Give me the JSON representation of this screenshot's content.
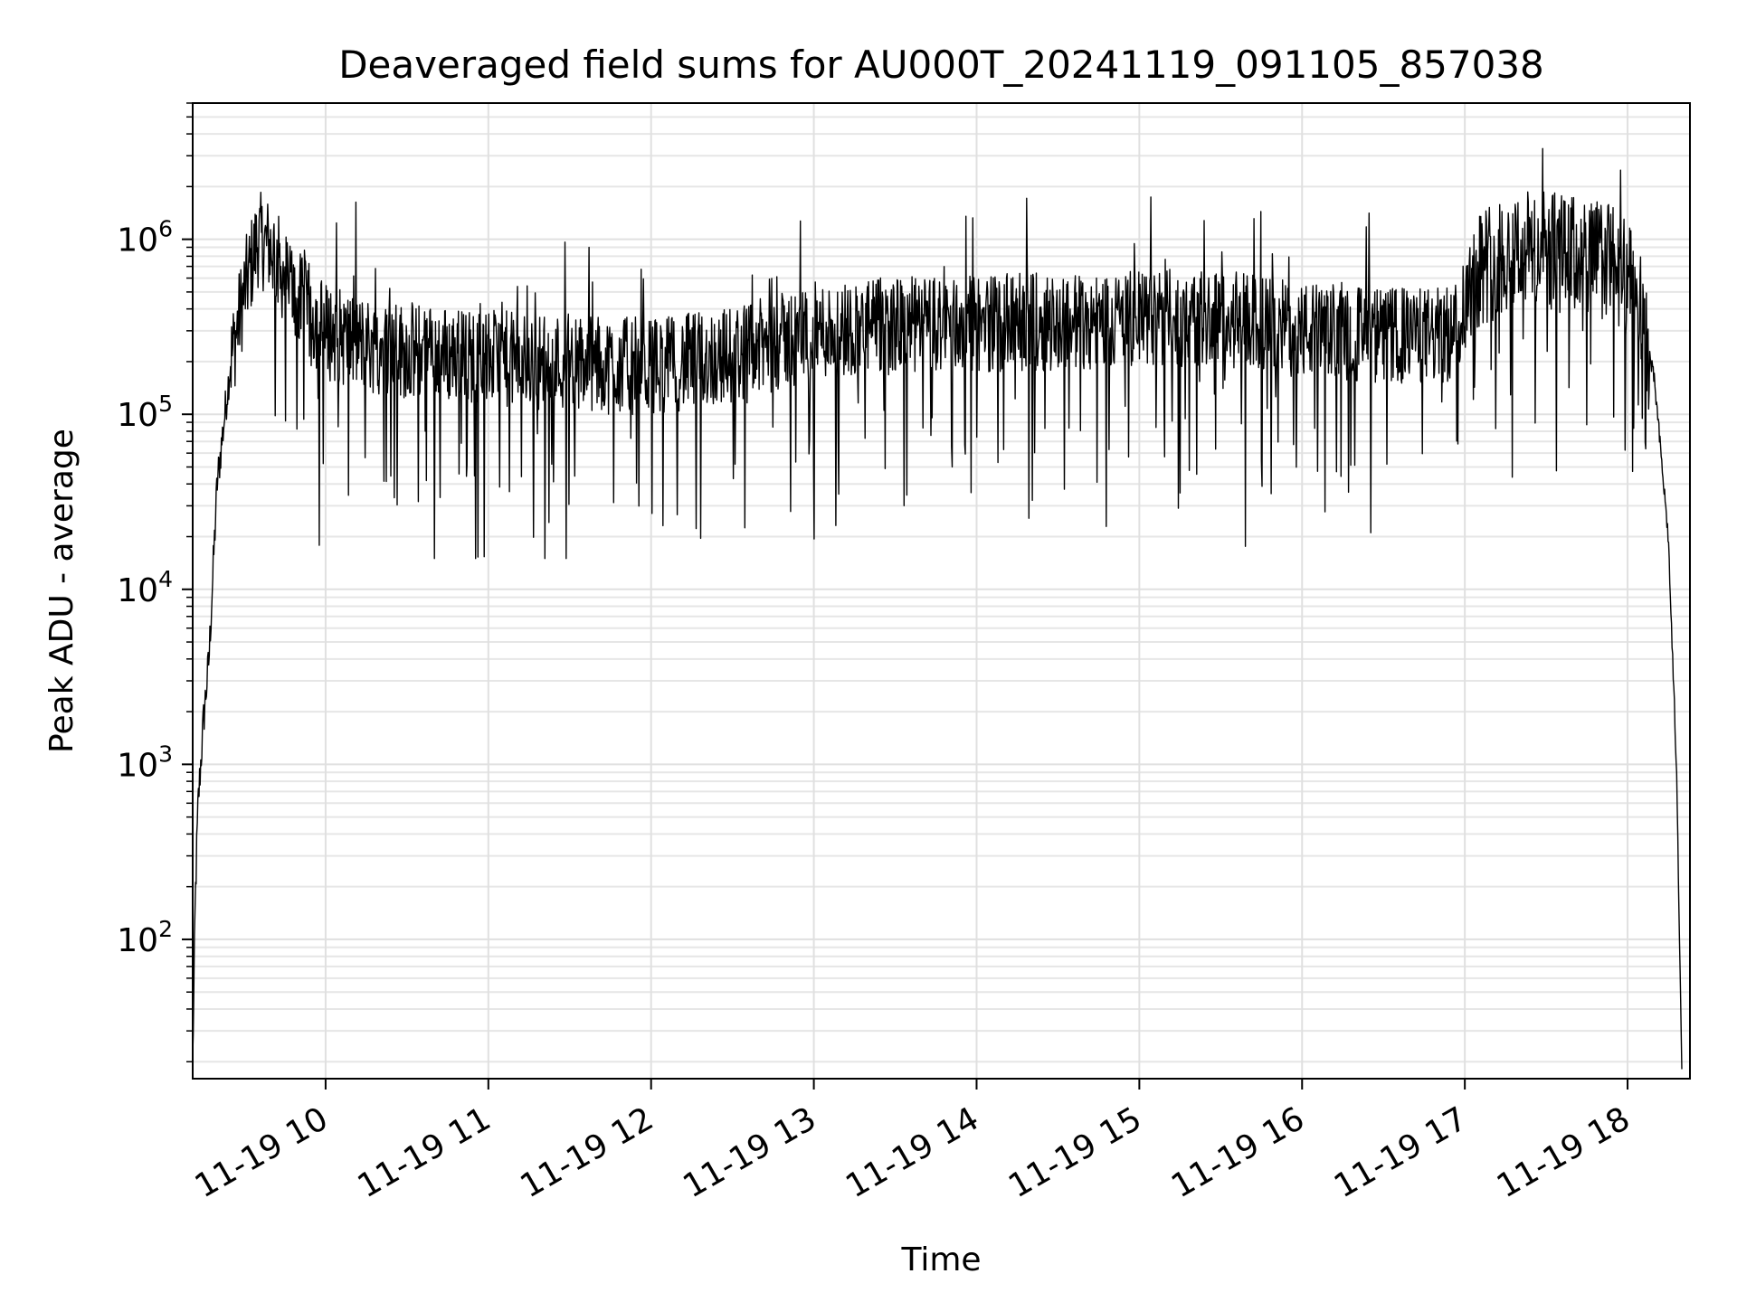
{
  "chart_data": {
    "type": "line",
    "title": "Deaveraged field sums for AU000T_20241119_091105_857038",
    "xlabel": "Time",
    "ylabel": "Peak ADU - average",
    "yscale": "log",
    "ylim": [
      16,
      6000000
    ],
    "xlim": [
      "11-19 09:11",
      "11-19 18:23"
    ],
    "x_tick_labels": [
      "11-19 10",
      "11-19 11",
      "11-19 12",
      "11-19 13",
      "11-19 14",
      "11-19 15",
      "11-19 16",
      "11-19 17",
      "11-19 18"
    ],
    "x_tick_values": [
      "11-19 10:00",
      "11-19 11:00",
      "11-19 12:00",
      "11-19 13:00",
      "11-19 14:00",
      "11-19 15:00",
      "11-19 16:00",
      "11-19 17:00",
      "11-19 18:00"
    ],
    "y_tick_labels": [
      {
        "base": "10",
        "exp": "2"
      },
      {
        "base": "10",
        "exp": "3"
      },
      {
        "base": "10",
        "exp": "4"
      },
      {
        "base": "10",
        "exp": "5"
      },
      {
        "base": "10",
        "exp": "6"
      }
    ],
    "y_tick_values": [
      100,
      1000,
      10000,
      100000,
      1000000
    ],
    "grid": true,
    "grid_which": "both",
    "series": [
      {
        "color": "#000000",
        "x": [
          "11-19 09:11",
          "11-19 09:12",
          "11-19 09:13",
          "11-19 09:15",
          "11-19 09:17",
          "11-19 09:20",
          "11-19 09:25",
          "11-19 09:30",
          "11-19 09:35",
          "11-19 09:40",
          "11-19 09:45",
          "11-19 09:50",
          "11-19 10:00",
          "11-19 10:10",
          "11-19 10:20",
          "11-19 10:30",
          "11-19 10:45",
          "11-19 11:00",
          "11-19 11:15",
          "11-19 11:30",
          "11-19 11:45",
          "11-19 12:00",
          "11-19 12:15",
          "11-19 12:30",
          "11-19 12:45",
          "11-19 13:00",
          "11-19 13:30",
          "11-19 14:00",
          "11-19 14:30",
          "11-19 15:00",
          "11-19 15:30",
          "11-19 16:00",
          "11-19 16:30",
          "11-19 16:55",
          "11-19 17:05",
          "11-19 17:20",
          "11-19 17:40",
          "11-19 17:55",
          "11-19 18:05",
          "11-19 18:10",
          "11-19 18:15",
          "11-19 18:18",
          "11-19 18:20"
        ],
        "y": [
          20,
          180,
          600,
          1800,
          4000,
          40000,
          200000,
          500000,
          1000000,
          900000,
          600000,
          450000,
          300000,
          260000,
          240000,
          230000,
          220000,
          210000,
          200000,
          200000,
          190000,
          190000,
          200000,
          220000,
          250000,
          300000,
          320000,
          330000,
          340000,
          350000,
          360000,
          300000,
          280000,
          280000,
          700000,
          900000,
          800000,
          750000,
          400000,
          150000,
          20000,
          1000,
          20
        ],
        "noise_range": [
          15000,
          3300000
        ]
      }
    ],
    "legend": "none"
  }
}
